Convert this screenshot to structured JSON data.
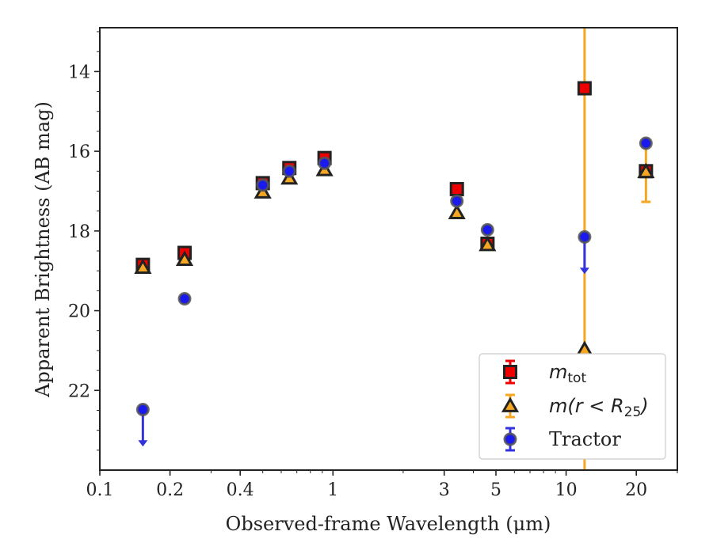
{
  "chart_data": {
    "type": "scatter",
    "xlabel": "Observed-frame Wavelength (μm)",
    "ylabel": "Apparent Brightness (AB mag)",
    "xscale": "log",
    "xlim": [
      0.1,
      30
    ],
    "ylim": [
      24.0,
      12.9
    ],
    "y_inverted": true,
    "x_ticks": [
      0.1,
      0.2,
      0.4,
      1,
      3,
      5,
      10,
      20
    ],
    "x_tick_labels": [
      "0.1",
      "0.2",
      "0.4",
      "1",
      "3",
      "5",
      "10",
      "20"
    ],
    "y_ticks": [
      14,
      16,
      18,
      20,
      22
    ],
    "y_tick_labels": [
      "14",
      "16",
      "18",
      "20",
      "22"
    ],
    "legend": {
      "position": "lower-right"
    },
    "series": [
      {
        "name": "m_tot",
        "label_main": "m",
        "label_sub": "tot",
        "marker": "square",
        "color": "#ee0000",
        "edge": "#222222",
        "points": [
          {
            "x": 0.153,
            "y": 18.85
          },
          {
            "x": 0.231,
            "y": 18.55
          },
          {
            "x": 0.5,
            "y": 16.8
          },
          {
            "x": 0.65,
            "y": 16.42
          },
          {
            "x": 0.92,
            "y": 16.17
          },
          {
            "x": 3.4,
            "y": 16.95
          },
          {
            "x": 4.6,
            "y": 18.32
          },
          {
            "x": 12,
            "y": 14.42
          },
          {
            "x": 22,
            "y": 16.5
          }
        ]
      },
      {
        "name": "m(r<R25)",
        "label_main": "m(r < R",
        "label_sub": "25",
        "label_end": ")",
        "marker": "triangle",
        "color": "#f5a623",
        "edge": "#222222",
        "points": [
          {
            "x": 0.153,
            "y": 18.92
          },
          {
            "x": 0.231,
            "y": 18.72
          },
          {
            "x": 0.5,
            "y": 17.03
          },
          {
            "x": 0.65,
            "y": 16.68
          },
          {
            "x": 0.92,
            "y": 16.47
          },
          {
            "x": 3.4,
            "y": 17.55
          },
          {
            "x": 4.6,
            "y": 18.35
          },
          {
            "x": 12,
            "y": 20.98,
            "yerr_full_axis": true
          },
          {
            "x": 22,
            "y": 16.52,
            "yerr": 0.75
          }
        ]
      },
      {
        "name": "Tractor",
        "label_main": "Tractor",
        "marker": "circle",
        "color": "#1a1aee",
        "edge": "#555555",
        "points": [
          {
            "x": 0.153,
            "y": 22.48,
            "upper_limit": true
          },
          {
            "x": 0.231,
            "y": 19.7
          },
          {
            "x": 0.5,
            "y": 16.85
          },
          {
            "x": 0.65,
            "y": 16.5
          },
          {
            "x": 0.92,
            "y": 16.3
          },
          {
            "x": 3.4,
            "y": 17.25
          },
          {
            "x": 4.6,
            "y": 17.97
          },
          {
            "x": 12,
            "y": 18.15,
            "upper_limit": true
          },
          {
            "x": 22,
            "y": 15.8
          }
        ]
      }
    ]
  }
}
